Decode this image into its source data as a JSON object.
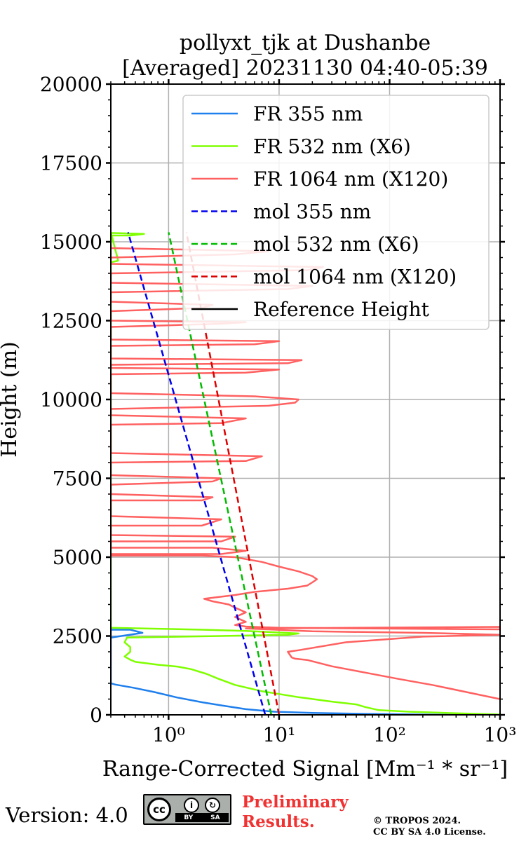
{
  "chart_data": {
    "type": "line",
    "title": "pollyxt_tjk at Dushanbe",
    "subtitle": "[Averaged] 20231130 04:40-05:39",
    "xlabel": "Range-Corrected Signal [Mm⁻¹ * sr⁻¹]",
    "ylabel": "Height (m)",
    "xscale": "log",
    "xlim": [
      0.3,
      1000
    ],
    "ylim": [
      0,
      20000
    ],
    "grid": true,
    "legend_position": "top-right",
    "x_tick_labels": [
      "10⁰",
      "10¹",
      "10²",
      "10³"
    ],
    "x_tick_values": [
      1,
      10,
      100,
      1000
    ],
    "y_tick_labels": [
      "0",
      "2500",
      "5000",
      "7500",
      "10000",
      "12500",
      "15000",
      "17500",
      "20000"
    ],
    "y_tick_values": [
      0,
      2500,
      5000,
      7500,
      10000,
      12500,
      15000,
      17500,
      20000
    ],
    "series": [
      {
        "name": "FR 355 nm",
        "color": "#1f7fec",
        "style": "solid",
        "points": [
          [
            400,
            0
          ],
          [
            60,
            30
          ],
          [
            20,
            60
          ],
          [
            9,
            100
          ],
          [
            5,
            180
          ],
          [
            3,
            300
          ],
          [
            2,
            400
          ],
          [
            1.2,
            550
          ],
          [
            0.75,
            720
          ],
          [
            0.48,
            860
          ],
          [
            0.33,
            960
          ],
          [
            0.3,
            1000
          ],
          [
            0.3,
            2700
          ],
          [
            0.45,
            2700
          ],
          [
            0.58,
            2600
          ],
          [
            0.3,
            2450
          ]
        ]
      },
      {
        "name": "FR 532 nm (X6)",
        "color": "#7fff00",
        "style": "solid",
        "points": [
          [
            1000,
            10
          ],
          [
            400,
            50
          ],
          [
            150,
            100
          ],
          [
            80,
            150
          ],
          [
            60,
            250
          ],
          [
            50,
            330
          ],
          [
            30,
            420
          ],
          [
            15,
            560
          ],
          [
            7,
            750
          ],
          [
            4,
            950
          ],
          [
            2.8,
            1150
          ],
          [
            2.2,
            1300
          ],
          [
            1.6,
            1450
          ],
          [
            1.2,
            1530
          ],
          [
            0.8,
            1590
          ],
          [
            0.5,
            1680
          ],
          [
            0.45,
            1750
          ],
          [
            0.4,
            1850
          ],
          [
            0.45,
            2000
          ],
          [
            0.45,
            2150
          ],
          [
            0.4,
            2300
          ],
          [
            0.42,
            2450
          ],
          [
            3,
            2500
          ],
          [
            12,
            2540
          ],
          [
            15,
            2580
          ],
          [
            5,
            2660
          ],
          [
            2,
            2700
          ],
          [
            0.6,
            2740
          ],
          [
            0.3,
            2760
          ],
          [
            0.3,
            2780
          ],
          [
            0.3,
            14900
          ],
          [
            0.3,
            15200
          ],
          [
            0.45,
            15200
          ],
          [
            0.6,
            15250
          ],
          [
            0.3,
            15280
          ],
          [
            0.3,
            15300
          ],
          [
            0.35,
            14400
          ],
          [
            0.3,
            14350
          ]
        ]
      },
      {
        "name": "FR 1064 nm (X120)",
        "color": "#ff6060",
        "style": "solid",
        "points": [
          [
            1000,
            500
          ],
          [
            500,
            720
          ],
          [
            250,
            940
          ],
          [
            120,
            1140
          ],
          [
            60,
            1340
          ],
          [
            30,
            1540
          ],
          [
            18,
            1740
          ],
          [
            14,
            1780
          ],
          [
            13,
            1820
          ],
          [
            12,
            2000
          ],
          [
            15,
            2050
          ],
          [
            40,
            2300
          ],
          [
            200,
            2480
          ],
          [
            1000,
            2540
          ],
          [
            200,
            2600
          ],
          [
            20,
            2650
          ],
          [
            12,
            2680
          ],
          [
            8,
            2710
          ],
          [
            5,
            2740
          ],
          [
            1000,
            2790
          ],
          [
            1000,
            2710
          ],
          [
            10,
            2760
          ],
          [
            5,
            2800
          ],
          [
            4,
            2850
          ],
          [
            5,
            2950
          ],
          [
            4,
            3100
          ],
          [
            5,
            3250
          ],
          [
            4,
            3400
          ],
          [
            3.5,
            3500
          ],
          [
            2.5,
            3600
          ],
          [
            2.1,
            3680
          ],
          [
            4,
            3800
          ],
          [
            6,
            3900
          ],
          [
            12,
            4000
          ],
          [
            18,
            4100
          ],
          [
            20,
            4200
          ],
          [
            22,
            4300
          ],
          [
            20,
            4400
          ],
          [
            15,
            4550
          ],
          [
            10,
            4700
          ],
          [
            7,
            4850
          ],
          [
            4,
            5000
          ],
          [
            2,
            5050
          ],
          [
            0.3,
            5050
          ],
          [
            0.3,
            5100
          ],
          [
            3,
            5100
          ],
          [
            5,
            5200
          ],
          [
            2.5,
            5300
          ],
          [
            0.3,
            5300
          ],
          [
            0.3,
            5500
          ],
          [
            3,
            5500
          ],
          [
            4,
            5650
          ],
          [
            0.3,
            5700
          ],
          [
            0.3,
            6000
          ],
          [
            2,
            6000
          ],
          [
            3,
            6200
          ],
          [
            0.3,
            6300
          ],
          [
            0.3,
            6800
          ],
          [
            2,
            6800
          ],
          [
            2.5,
            6900
          ],
          [
            0.3,
            7000
          ],
          [
            0.3,
            7300
          ],
          [
            2.5,
            7400
          ],
          [
            3,
            7500
          ],
          [
            0.3,
            7600
          ],
          [
            0.3,
            8000
          ],
          [
            5,
            8050
          ],
          [
            7,
            8200
          ],
          [
            0.3,
            8300
          ],
          [
            0.3,
            9200
          ],
          [
            3,
            9250
          ],
          [
            5,
            9400
          ],
          [
            0.3,
            9500
          ],
          [
            0.3,
            9700
          ],
          [
            8,
            9800
          ],
          [
            14,
            9900
          ],
          [
            15,
            10000
          ],
          [
            6,
            10100
          ],
          [
            0.3,
            10200
          ],
          [
            0.3,
            10800
          ],
          [
            5,
            10850
          ],
          [
            10,
            10950
          ],
          [
            0.3,
            11000
          ],
          [
            0.3,
            11100
          ],
          [
            12,
            11150
          ],
          [
            16,
            11250
          ],
          [
            0.3,
            11300
          ],
          [
            0.3,
            11700
          ],
          [
            6,
            11750
          ],
          [
            10,
            11850
          ],
          [
            0.3,
            11900
          ],
          [
            0.3,
            12300
          ],
          [
            3,
            12400
          ],
          [
            5,
            12450
          ],
          [
            0.3,
            12500
          ],
          [
            0.3,
            12800
          ],
          [
            2,
            12900
          ],
          [
            2.5,
            13000
          ],
          [
            0.3,
            13100
          ],
          [
            0.3,
            13400
          ],
          [
            12,
            13500
          ],
          [
            20,
            13600
          ],
          [
            0.3,
            13700
          ],
          [
            0.3,
            14000
          ],
          [
            18,
            14100
          ],
          [
            25,
            14200
          ],
          [
            0.3,
            14300
          ],
          [
            0.3,
            14500
          ],
          [
            4,
            14600
          ],
          [
            8,
            14700
          ],
          [
            0.3,
            14800
          ],
          [
            0.3,
            14900
          ]
        ]
      },
      {
        "name": "mol 355 nm",
        "color": "#0000ee",
        "style": "dashed",
        "points": [
          [
            7.5,
            0
          ],
          [
            0.43,
            15300
          ]
        ]
      },
      {
        "name": "mol 532 nm (X6)",
        "color": "#00bb00",
        "style": "dashed",
        "points": [
          [
            8.5,
            0
          ],
          [
            1.0,
            15300
          ]
        ]
      },
      {
        "name": "mol 1064 nm (X120)",
        "color": "#dd0000",
        "style": "dashed",
        "points": [
          [
            10,
            0
          ],
          [
            1.45,
            15300
          ]
        ]
      },
      {
        "name": "Reference Height",
        "color": "#000000",
        "style": "solid",
        "points": []
      }
    ]
  },
  "footer": {
    "version": "Version: 4.0",
    "cc_label": "cc",
    "by_label": "BY",
    "sa_label": "SA",
    "by_icon_glyph": "i",
    "sa_icon_glyph": "↻",
    "preliminary_line1": "Preliminary",
    "preliminary_line2": "Results.",
    "copyright_line1": "© TROPOS 2024.",
    "copyright_line2": "CC BY SA 4.0 License."
  }
}
